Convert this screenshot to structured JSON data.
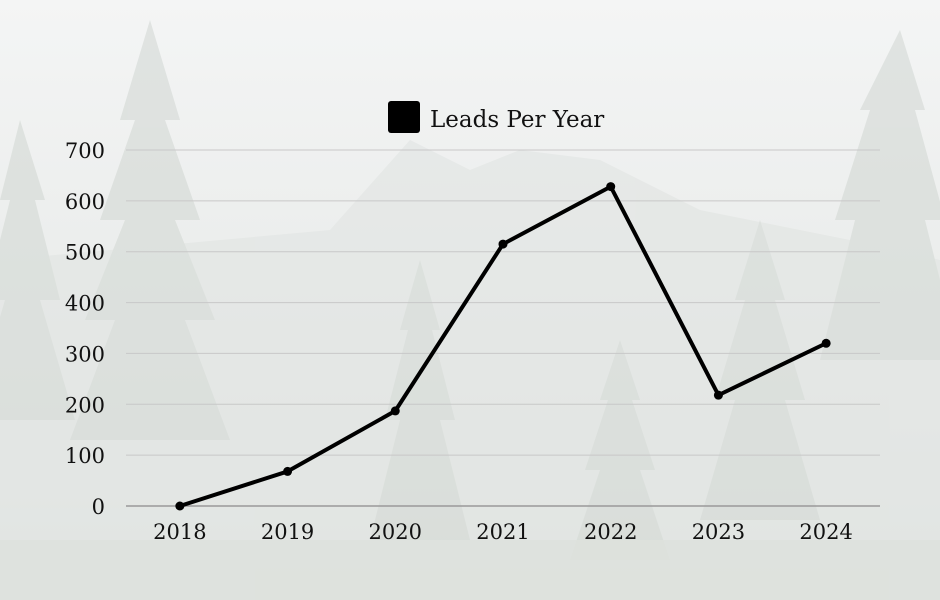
{
  "colors": {
    "line": "#000000",
    "grid": "#c8c8c8",
    "axis": "#999999",
    "background": "#eef0ef"
  },
  "chart_data": {
    "type": "line",
    "title": "",
    "xlabel": "",
    "ylabel": "",
    "categories": [
      "2018",
      "2019",
      "2020",
      "2021",
      "2022",
      "2023",
      "2024"
    ],
    "series": [
      {
        "name": "Leads Per Year",
        "values": [
          0,
          68,
          187,
          515,
          628,
          218,
          320
        ]
      }
    ],
    "ylim": [
      0,
      700
    ],
    "yticks": [
      0,
      100,
      200,
      300,
      400,
      500,
      600,
      700
    ],
    "grid": true,
    "legend": "top-center"
  }
}
